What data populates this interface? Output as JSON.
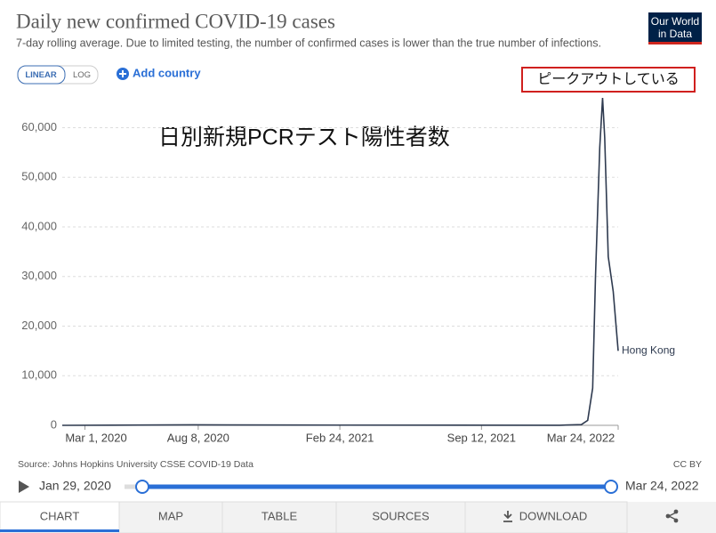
{
  "chart_data": {
    "type": "line",
    "title": "Daily new confirmed COVID-19 cases",
    "subtitle": "7-day rolling average. Due to limited testing, the number of confirmed cases is lower than the true number of infections.",
    "overlay_text": "日別新規PCRテスト陽性者数",
    "annotation": "ピークアウトしている",
    "x": [
      "2020-01-29",
      "2020-08-01",
      "2021-01-01",
      "2021-12-31",
      "2022-01-31",
      "2022-02-09",
      "2022-02-16",
      "2022-02-20",
      "2022-02-26",
      "2022-03-02",
      "2022-03-05",
      "2022-03-10",
      "2022-03-17",
      "2022-03-24"
    ],
    "series": [
      {
        "name": "Hong Kong",
        "color": "#2e3a4f",
        "values": [
          0,
          100,
          50,
          20,
          150,
          1000,
          7500,
          30000,
          56000,
          66000,
          58000,
          34000,
          27000,
          15000
        ]
      }
    ],
    "xlim": [
      "2020-01-29",
      "2022-03-24"
    ],
    "xticks": [
      {
        "value": "2020-03-01",
        "label": "Mar 1, 2020"
      },
      {
        "value": "2020-08-08",
        "label": "Aug 8, 2020"
      },
      {
        "value": "2021-02-24",
        "label": "Feb 24, 2021"
      },
      {
        "value": "2021-09-12",
        "label": "Sep 12, 2021"
      },
      {
        "value": "2022-03-24",
        "label": "Mar 24, 2022"
      }
    ],
    "ylim": [
      0,
      66000
    ],
    "yticks": [
      0,
      {
        "value": 10000,
        "label": "10,000"
      },
      {
        "value": 20000,
        "label": "20,000"
      },
      {
        "value": 30000,
        "label": "30,000"
      },
      {
        "value": 40000,
        "label": "40,000"
      },
      {
        "value": 50000,
        "label": "50,000"
      },
      {
        "value": 60000,
        "label": "60,000"
      }
    ],
    "grid": true,
    "source": "Source: Johns Hopkins University CSSE COVID-19 Data",
    "license": "CC BY"
  },
  "ui": {
    "logo": [
      "Our World",
      "in Data"
    ],
    "scale_buttons": [
      "LINEAR",
      "LOG"
    ],
    "add_country": "Add country",
    "timeline": {
      "start": "Jan 29, 2020",
      "end": "Mar 24, 2022"
    },
    "tabs": [
      "CHART",
      "MAP",
      "TABLE",
      "SOURCES",
      "DOWNLOAD"
    ]
  }
}
